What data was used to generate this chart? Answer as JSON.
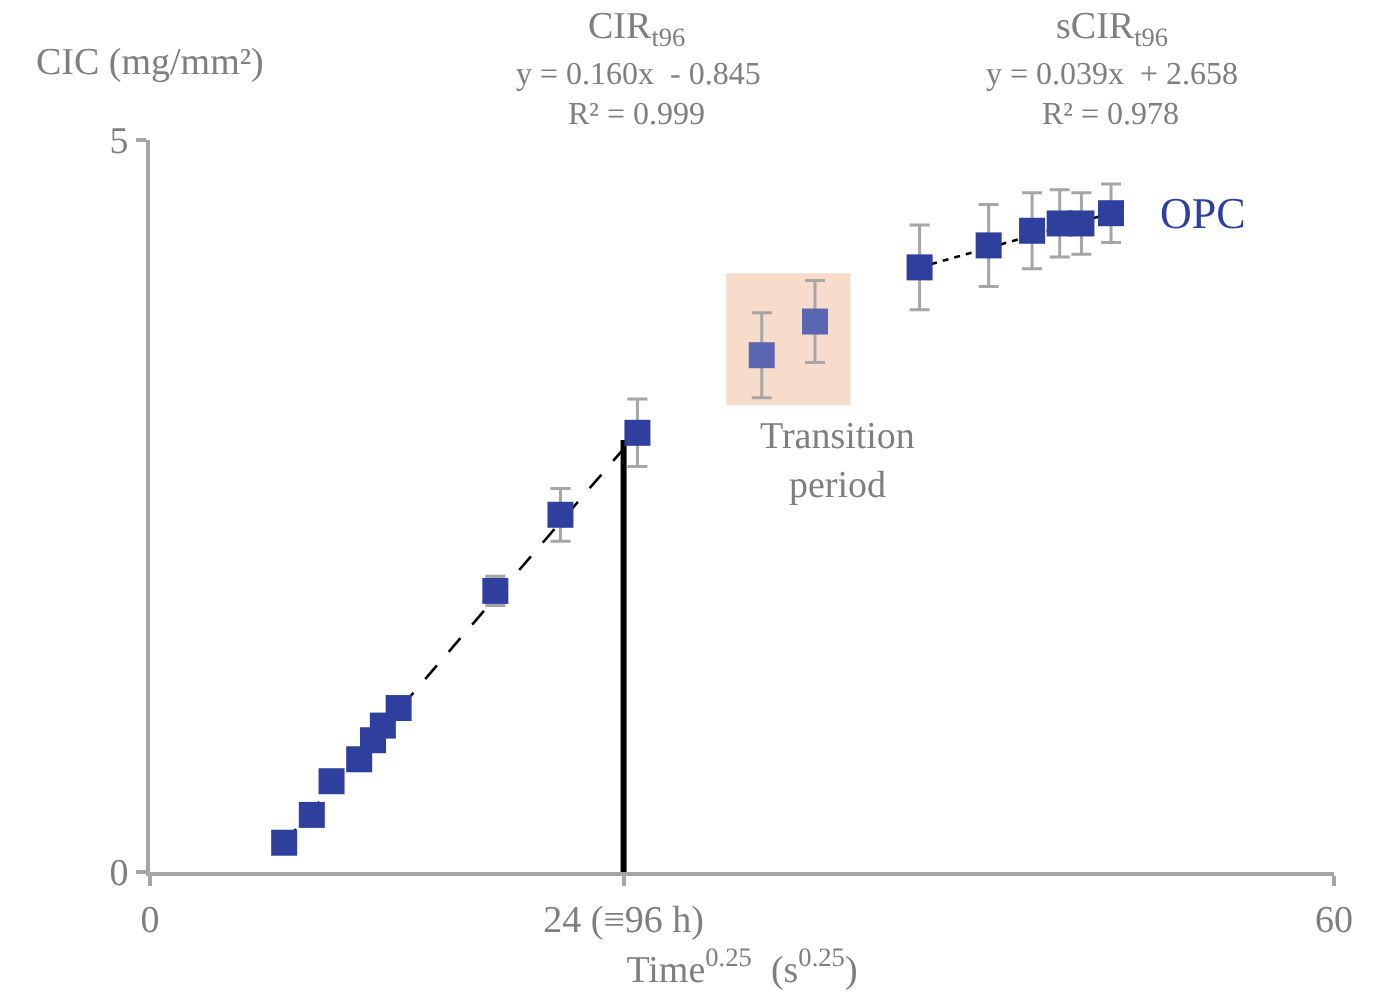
{
  "chart_data": {
    "type": "scatter",
    "xlabel": "Time$^{0.25}$  (s$^{0.25}$)",
    "ylabel": "CIC (mg/mm²)",
    "xlim": [
      0,
      60
    ],
    "xticks": [
      0,
      {
        "value": 24,
        "label": "24 (≡96 h)"
      },
      60
    ],
    "ylim": [
      0,
      5
    ],
    "yticks": [
      0,
      5
    ],
    "legend": false,
    "marker": "square",
    "series": [
      {
        "type": "line",
        "color": "#000000",
        "x": [
          24,
          24
        ],
        "values": [
          0,
          2.95
        ],
        "line_style": "solid",
        "marker": "none"
      },
      {
        "type": "line",
        "color": "#000000",
        "x": [
          6.8,
          24.7
        ],
        "values": [
          0.2,
          3.0
        ],
        "line_style": "dashed",
        "marker": "none"
      },
      {
        "type": "line",
        "color": "#000000",
        "x": [
          39.0,
          48.7
        ],
        "values": [
          4.13,
          4.5
        ],
        "line_style": "dotted",
        "marker": "none"
      },
      {
        "color": "#2e3f9e",
        "x": [
          6.8,
          8.2,
          9.2,
          10.6,
          11.3,
          11.8,
          12.6,
          17.5,
          20.8,
          24.7
        ],
        "values": [
          0.2,
          0.39,
          0.62,
          0.77,
          0.9,
          1.0,
          1.12,
          1.92,
          2.44,
          3.0
        ],
        "errors": [
          null,
          null,
          null,
          null,
          null,
          null,
          null,
          0.1,
          0.18,
          0.23
        ]
      },
      {
        "color": "#5b66b3",
        "x": [
          31.0,
          33.7
        ],
        "values": [
          3.53,
          3.76
        ],
        "errors": [
          0.29,
          0.28
        ]
      },
      {
        "name": "OPC",
        "color": "#2e3f9e",
        "x": [
          39.0,
          42.5,
          44.7,
          46.1,
          47.2,
          48.7
        ],
        "values": [
          4.13,
          4.28,
          4.38,
          4.43,
          4.43,
          4.5
        ],
        "errors": [
          0.29,
          0.28,
          0.26,
          0.23,
          0.21,
          0.2
        ]
      }
    ],
    "annotations": [
      "CIR$_{t96}$",
      "y = 0.160x  - 0.845",
      "R² = 0.999",
      "sCIR$_{t96}$",
      "y = 0.039x  + 2.658",
      "R² = 0.978"
    ],
    "bands": [
      {
        "axis": "x",
        "from": 29.2,
        "to": 35.5,
        "label": "Transition period",
        "color": "#f8dccb"
      }
    ]
  }
}
